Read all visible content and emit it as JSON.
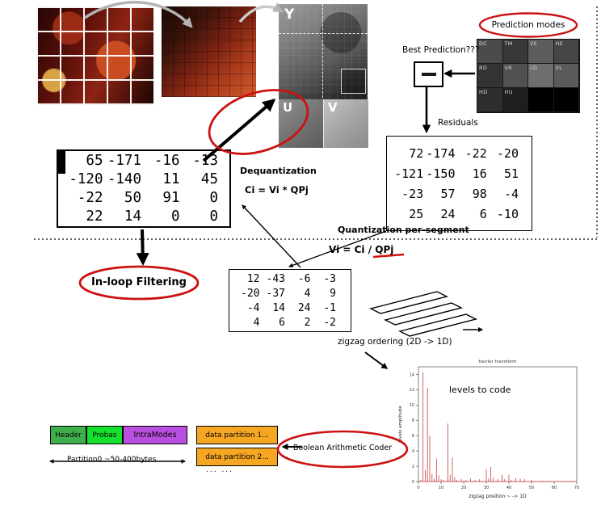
{
  "stages": {
    "prediction_modes": "Prediction modes",
    "best_prediction": "Best Prediction???",
    "residuals": "Residuals",
    "dequantization": "Dequantization",
    "dequant_formula": "Ci = Vi * QPj",
    "quantization": "Quantization per-segment",
    "quant_formula": "Vi = Ci / QPj",
    "inloop_filtering": "In-loop Filtering",
    "zigzag_ordering": "zigzag ordering  (2D -> 1D)",
    "boolean_coder": "Boolean Arithmetic Coder",
    "levels_to_code": "levels to code"
  },
  "planes": {
    "y": "Y",
    "u": "U",
    "v": "V"
  },
  "prediction": {
    "cells": [
      "DC",
      "TM",
      "VE",
      "HE",
      "RD",
      "VR",
      "LD",
      "VL",
      "HD",
      "HU",
      "",
      ""
    ]
  },
  "matrices": {
    "dequantized": {
      "values": [
        [
          "65",
          "-171",
          "-16",
          "-13"
        ],
        [
          "-120",
          "-140",
          "11",
          "45"
        ],
        [
          "-22",
          "50",
          "91",
          "0"
        ],
        [
          "22",
          "14",
          "0",
          "0"
        ]
      ]
    },
    "residuals": {
      "values": [
        [
          "72",
          "-174",
          "-22",
          "-20"
        ],
        [
          "-121",
          "-150",
          "16",
          "51"
        ],
        [
          "-23",
          "57",
          "98",
          "-4"
        ],
        [
          "25",
          "24",
          "6",
          "-10"
        ]
      ]
    },
    "quantized": {
      "values": [
        [
          "12",
          "-43",
          "-6",
          "-3"
        ],
        [
          "-20",
          "-37",
          "4",
          "9"
        ],
        [
          "-4",
          "14",
          "24",
          "-1"
        ],
        [
          "4",
          "6",
          "2",
          "-2"
        ]
      ]
    }
  },
  "bitstream": {
    "header": "Header",
    "probas": "Probas",
    "intra_modes": "IntraModes",
    "partition1": "data partition 1...",
    "partition2": "data partition 2...",
    "partition0_label": "Partition0  ~50-400bytes",
    "more": "...  ..."
  },
  "plot": {
    "type": "stem",
    "title": "fourier transform",
    "xlabel": "zigzag position  ~ -> 1D",
    "ylabel": "levels amplitude",
    "xlim": [
      0,
      70
    ],
    "ylim": [
      0,
      15
    ],
    "xticks": [
      0,
      10,
      20,
      30,
      40,
      50,
      60,
      70
    ],
    "yticks": [
      0,
      2,
      4,
      6,
      8,
      10,
      12,
      14
    ],
    "points": [
      [
        1,
        0.2
      ],
      [
        2,
        14.3
      ],
      [
        3,
        1.5
      ],
      [
        4,
        12.2
      ],
      [
        5,
        6.0
      ],
      [
        6,
        1.0
      ],
      [
        7,
        0.4
      ],
      [
        8,
        3.0
      ],
      [
        9,
        0.8
      ],
      [
        10,
        0.3
      ],
      [
        11,
        0.2
      ],
      [
        13,
        7.6
      ],
      [
        14,
        0.9
      ],
      [
        15,
        3.1
      ],
      [
        16,
        0.6
      ],
      [
        17,
        0.2
      ],
      [
        19,
        0.3
      ],
      [
        21,
        0.2
      ],
      [
        23,
        0.4
      ],
      [
        25,
        0.2
      ],
      [
        27,
        0.3
      ],
      [
        30,
        1.6
      ],
      [
        31,
        0.4
      ],
      [
        32,
        1.9
      ],
      [
        33,
        0.5
      ],
      [
        35,
        0.3
      ],
      [
        37,
        0.9
      ],
      [
        38,
        0.3
      ],
      [
        40,
        0.9
      ],
      [
        41,
        0.2
      ],
      [
        43,
        0.5
      ],
      [
        45,
        0.4
      ],
      [
        47,
        0.3
      ],
      [
        50,
        0.2
      ],
      [
        55,
        0.1
      ]
    ]
  },
  "colors": {
    "accent_red": "#cc1111",
    "header_green": "#3fae4c",
    "probas_green": "#16e02e",
    "intra_purple": "#b84fe0",
    "partition_orange": "#f5a623",
    "plot_red": "#cc5555"
  }
}
